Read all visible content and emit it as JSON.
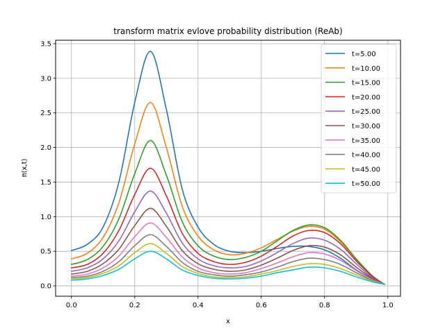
{
  "chart_data": {
    "type": "line",
    "title": "transform matrix evlove probability distribution (ReAb)",
    "xlabel": "x",
    "ylabel": "π(x,t)",
    "xlim": [
      -0.05,
      1.04
    ],
    "ylim": [
      -0.15,
      3.55
    ],
    "xticks": [
      {
        "value": 0.0,
        "label": "0.0"
      },
      {
        "value": 0.2,
        "label": "0.2"
      },
      {
        "value": 0.4,
        "label": "0.4"
      },
      {
        "value": 0.6,
        "label": "0.6"
      },
      {
        "value": 0.8,
        "label": "0.8"
      },
      {
        "value": 1.0,
        "label": "1.0"
      }
    ],
    "yticks": [
      {
        "value": 0.0,
        "label": "0.0"
      },
      {
        "value": 0.5,
        "label": "0.5"
      },
      {
        "value": 1.0,
        "label": "1.0"
      },
      {
        "value": 1.5,
        "label": "1.5"
      },
      {
        "value": 2.0,
        "label": "2.0"
      },
      {
        "value": 2.5,
        "label": "2.5"
      },
      {
        "value": 3.0,
        "label": "3.0"
      },
      {
        "value": 3.5,
        "label": "3.5"
      }
    ],
    "grid": true,
    "legend_position": "top-right",
    "x": [
      0.0,
      0.05,
      0.1,
      0.15,
      0.2,
      0.25,
      0.3,
      0.35,
      0.4,
      0.45,
      0.5,
      0.55,
      0.6,
      0.65,
      0.7,
      0.75,
      0.8,
      0.85,
      0.9,
      0.95,
      0.99
    ],
    "series": [
      {
        "name": "t=5.00",
        "color": "#1f77b4",
        "values": [
          0.51,
          0.6,
          0.85,
          1.5,
          2.65,
          3.39,
          2.55,
          1.4,
          0.85,
          0.6,
          0.5,
          0.48,
          0.5,
          0.54,
          0.57,
          0.57,
          0.52,
          0.4,
          0.23,
          0.1,
          0.02
        ]
      },
      {
        "name": "t=10.00",
        "color": "#ff7f0e",
        "values": [
          0.39,
          0.47,
          0.7,
          1.2,
          2.05,
          2.65,
          2.0,
          1.15,
          0.72,
          0.52,
          0.45,
          0.47,
          0.55,
          0.67,
          0.79,
          0.86,
          0.82,
          0.64,
          0.38,
          0.14,
          0.02
        ]
      },
      {
        "name": "t=15.00",
        "color": "#2ca02c",
        "values": [
          0.31,
          0.38,
          0.57,
          0.97,
          1.62,
          2.1,
          1.6,
          0.93,
          0.58,
          0.43,
          0.38,
          0.41,
          0.5,
          0.65,
          0.8,
          0.88,
          0.84,
          0.66,
          0.39,
          0.15,
          0.02
        ]
      },
      {
        "name": "t=20.00",
        "color": "#d62728",
        "values": [
          0.26,
          0.31,
          0.47,
          0.8,
          1.32,
          1.7,
          1.3,
          0.76,
          0.47,
          0.35,
          0.31,
          0.34,
          0.43,
          0.57,
          0.72,
          0.8,
          0.77,
          0.61,
          0.36,
          0.14,
          0.02
        ]
      },
      {
        "name": "t=25.00",
        "color": "#9467bd",
        "values": [
          0.21,
          0.26,
          0.39,
          0.65,
          1.07,
          1.37,
          1.05,
          0.62,
          0.39,
          0.29,
          0.26,
          0.28,
          0.36,
          0.48,
          0.61,
          0.69,
          0.66,
          0.53,
          0.32,
          0.12,
          0.02
        ]
      },
      {
        "name": "t=30.00",
        "color": "#8c564b",
        "values": [
          0.17,
          0.21,
          0.32,
          0.53,
          0.87,
          1.12,
          0.86,
          0.51,
          0.32,
          0.24,
          0.21,
          0.23,
          0.3,
          0.4,
          0.51,
          0.58,
          0.56,
          0.45,
          0.27,
          0.11,
          0.02
        ]
      },
      {
        "name": "t=35.00",
        "color": "#e377c2",
        "values": [
          0.14,
          0.17,
          0.26,
          0.43,
          0.71,
          0.91,
          0.7,
          0.42,
          0.26,
          0.19,
          0.17,
          0.19,
          0.25,
          0.33,
          0.42,
          0.48,
          0.46,
          0.37,
          0.22,
          0.09,
          0.02
        ]
      },
      {
        "name": "t=40.00",
        "color": "#7f7f7f",
        "values": [
          0.12,
          0.14,
          0.21,
          0.35,
          0.58,
          0.74,
          0.57,
          0.34,
          0.21,
          0.16,
          0.14,
          0.16,
          0.2,
          0.27,
          0.35,
          0.4,
          0.38,
          0.31,
          0.19,
          0.08,
          0.02
        ]
      },
      {
        "name": "t=45.00",
        "color": "#bcbd22",
        "values": [
          0.1,
          0.12,
          0.18,
          0.29,
          0.48,
          0.61,
          0.47,
          0.28,
          0.18,
          0.13,
          0.12,
          0.13,
          0.17,
          0.22,
          0.28,
          0.32,
          0.31,
          0.25,
          0.16,
          0.07,
          0.02
        ]
      },
      {
        "name": "t=50.00",
        "color": "#17becf",
        "values": [
          0.08,
          0.1,
          0.15,
          0.24,
          0.39,
          0.5,
          0.39,
          0.23,
          0.15,
          0.11,
          0.1,
          0.11,
          0.14,
          0.19,
          0.23,
          0.27,
          0.26,
          0.21,
          0.13,
          0.06,
          0.02
        ]
      }
    ]
  }
}
